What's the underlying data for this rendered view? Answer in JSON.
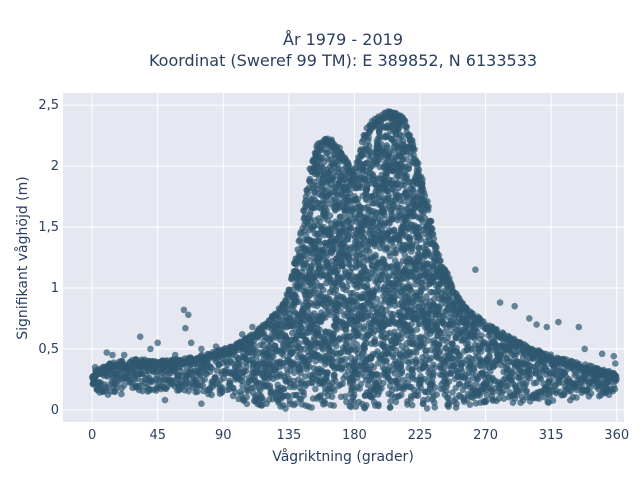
{
  "chart_data": {
    "type": "scatter",
    "title_line1": "År 1979 - 2019",
    "title_line2": "Koordinat (Sweref 99 TM): E 389852, N 6133533",
    "xlabel": "Vågriktning (grader)",
    "ylabel": "Signifikant våghöjd (m)",
    "xlim": [
      -20,
      365
    ],
    "ylim": [
      -0.1,
      2.6
    ],
    "xticks": [
      0,
      45,
      90,
      135,
      180,
      225,
      270,
      315,
      360
    ],
    "xtick_labels": [
      "0",
      "45",
      "90",
      "135",
      "180",
      "225",
      "270",
      "315",
      "360"
    ],
    "yticks": [
      0,
      0.5,
      1,
      1.5,
      2,
      2.5
    ],
    "ytick_labels": [
      "0",
      "0,5",
      "1",
      "1,5",
      "2",
      "2,5"
    ],
    "grid": true,
    "marker_color": "#2f5870",
    "plot_bg": "#e5e8f1",
    "envelope": {
      "x": [
        0,
        10,
        20,
        30,
        45,
        60,
        75,
        90,
        100,
        110,
        120,
        130,
        135,
        140,
        145,
        150,
        155,
        160,
        165,
        170,
        175,
        180,
        185,
        190,
        195,
        200,
        205,
        210,
        215,
        220,
        225,
        230,
        235,
        240,
        245,
        250,
        260,
        270,
        280,
        290,
        300,
        315,
        330,
        345,
        360
      ],
      "upper": [
        0.3,
        0.38,
        0.4,
        0.42,
        0.4,
        0.42,
        0.45,
        0.5,
        0.55,
        0.62,
        0.72,
        0.85,
        1.0,
        1.25,
        1.6,
        2.0,
        2.18,
        2.25,
        2.22,
        2.15,
        2.05,
        1.95,
        2.2,
        2.35,
        2.4,
        2.45,
        2.45,
        2.43,
        2.38,
        2.2,
        1.95,
        1.7,
        1.4,
        1.2,
        1.1,
        0.95,
        0.8,
        0.72,
        0.65,
        0.58,
        0.52,
        0.45,
        0.4,
        0.35,
        0.3
      ],
      "lower": [
        0.12,
        0.1,
        0.12,
        0.15,
        0.15,
        0.15,
        0.12,
        0.1,
        0.05,
        0.02,
        0.02,
        0.01,
        0.01,
        0.01,
        0.01,
        0.01,
        0.01,
        0.01,
        0.01,
        0.01,
        0.01,
        0.01,
        0.01,
        0.01,
        0.01,
        0.01,
        0.01,
        0.01,
        0.01,
        0.01,
        0.01,
        0.01,
        0.01,
        0.01,
        0.01,
        0.02,
        0.03,
        0.03,
        0.04,
        0.05,
        0.05,
        0.06,
        0.08,
        0.1,
        0.12
      ]
    },
    "outliers": [
      {
        "x": 63,
        "y": 0.82
      },
      {
        "x": 66,
        "y": 0.78
      },
      {
        "x": 64,
        "y": 0.67
      },
      {
        "x": 33,
        "y": 0.6
      },
      {
        "x": 45,
        "y": 0.55
      },
      {
        "x": 10,
        "y": 0.47
      },
      {
        "x": 14,
        "y": 0.45
      },
      {
        "x": 22,
        "y": 0.45
      },
      {
        "x": 40,
        "y": 0.5
      },
      {
        "x": 68,
        "y": 0.55
      },
      {
        "x": 75,
        "y": 0.5
      },
      {
        "x": 85,
        "y": 0.52
      },
      {
        "x": 103,
        "y": 0.62
      },
      {
        "x": 110,
        "y": 0.68
      },
      {
        "x": 57,
        "y": 0.45
      },
      {
        "x": 20,
        "y": 0.38
      },
      {
        "x": 2,
        "y": 0.35
      },
      {
        "x": 290,
        "y": 0.85
      },
      {
        "x": 300,
        "y": 0.75
      },
      {
        "x": 305,
        "y": 0.7
      },
      {
        "x": 312,
        "y": 0.68
      },
      {
        "x": 320,
        "y": 0.72
      },
      {
        "x": 334,
        "y": 0.68
      },
      {
        "x": 338,
        "y": 0.5
      },
      {
        "x": 350,
        "y": 0.46
      },
      {
        "x": 358,
        "y": 0.44
      },
      {
        "x": 359,
        "y": 0.38
      },
      {
        "x": 280,
        "y": 0.88
      },
      {
        "x": 263,
        "y": 1.15
      },
      {
        "x": 75,
        "y": 0.05
      },
      {
        "x": 50,
        "y": 0.08
      }
    ]
  }
}
